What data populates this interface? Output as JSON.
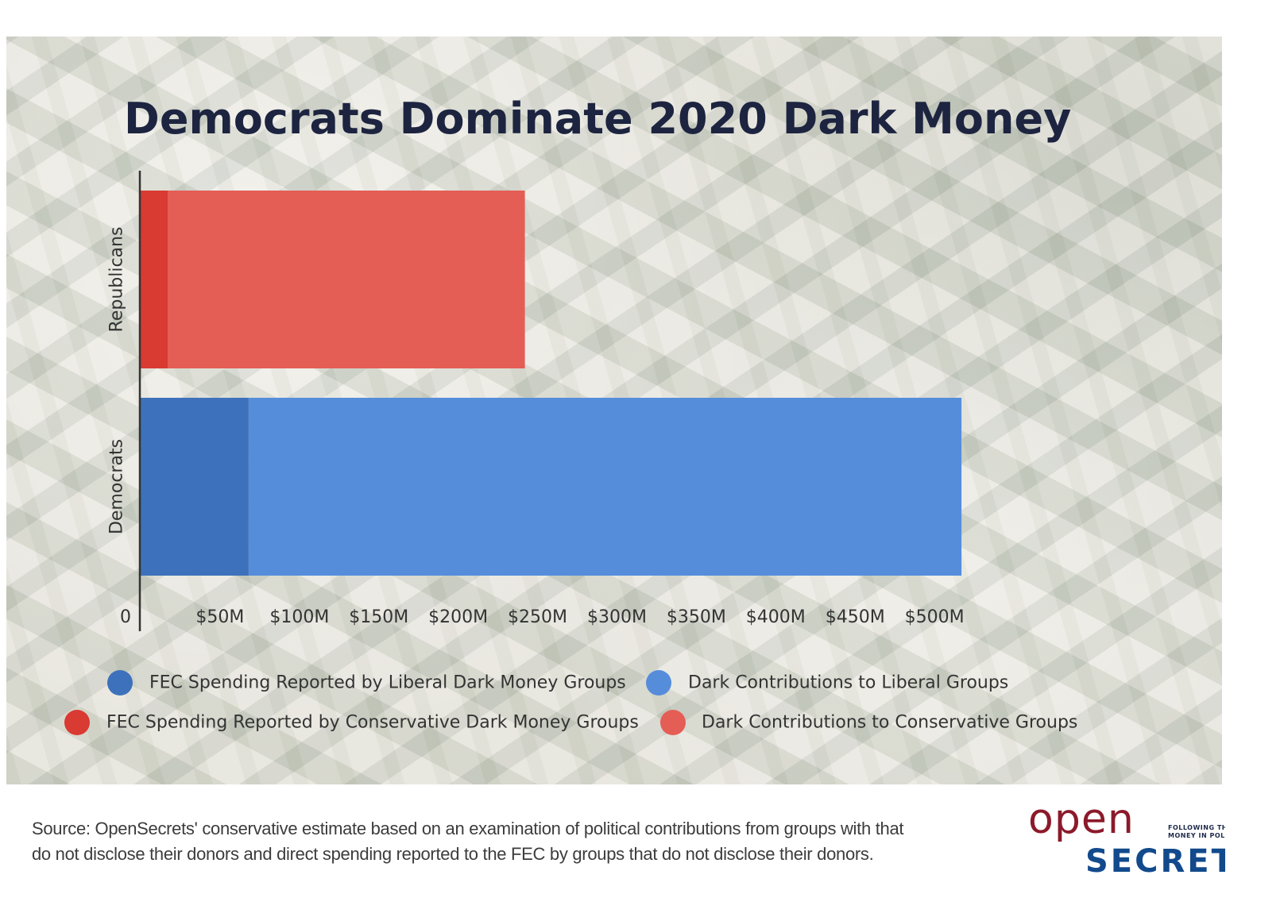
{
  "chart_data": {
    "type": "bar",
    "orientation": "horizontal",
    "stacked": true,
    "title": "Democrats Dominate 2020 Dark Money",
    "categories": [
      "Republicans",
      "Democrats"
    ],
    "series": [
      {
        "name": "FEC Spending Reported by Conservative Dark Money Groups",
        "color": "#d93a32",
        "values": [
          17,
          0
        ]
      },
      {
        "name": "Dark Contributions to Conservative Groups",
        "color": "#e45e55",
        "values": [
          225,
          0
        ]
      },
      {
        "name": "FEC Spending Reported by Liberal Dark Money Groups",
        "color": "#3d71bb",
        "values": [
          0,
          68
        ]
      },
      {
        "name": "Dark Contributions to Liberal Groups",
        "color": "#558ddb",
        "values": [
          0,
          449
        ]
      }
    ],
    "xlim": [
      0,
      560
    ],
    "x_ticks": [
      0,
      50,
      100,
      150,
      200,
      250,
      300,
      350,
      400,
      450,
      500
    ],
    "x_tick_labels": [
      "0",
      "$50M",
      "$100M",
      "$150M",
      "$200M",
      "$250M",
      "$300M",
      "$350M",
      "$400M",
      "$450M",
      "$500M"
    ],
    "xlabel": "",
    "ylabel": "",
    "legend_order": [
      2,
      3,
      0,
      1
    ],
    "legend_position": "bottom",
    "grid": false
  },
  "source_note": "Source: OpenSecrets' conservative estimate based on an examination of political contributions from groups with that do not disclose their donors and direct spending reported to the FEC by groups that do not disclose their donors.",
  "logo": {
    "open": "open",
    "tagline_line1": "FOLLOWING THE",
    "tagline_line2": "MONEY IN POLITICS",
    "secret": "SECRETS"
  }
}
